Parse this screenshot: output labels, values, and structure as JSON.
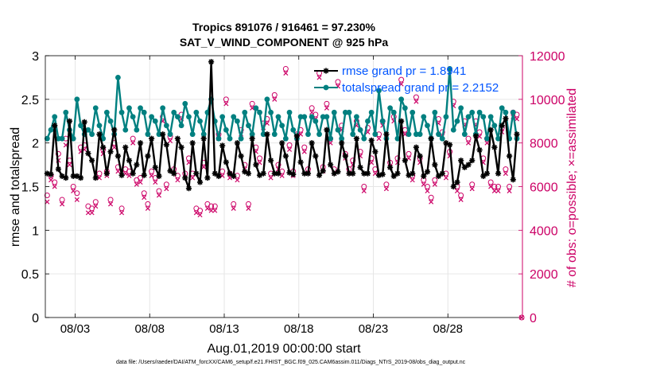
{
  "chart_data": {
    "type": "line",
    "title": "Tropics 891076 / 916461 = 97.230%",
    "subtitle": "SAT_V_WIND_COMPONENT @ 925 hPa",
    "xlabel": "Aug.01,2019 00:00:00 start",
    "ylabel": "rmse and totalspread",
    "ylabel_right": "# of obs: o=possible; ×=assimilated",
    "footnote": "data file: /Users/raeder/DAI/ATM_forcXX/CAM6_setup/f.e21.FHIST_BGC.f09_025.CAM6assim.011/Diags_NTrS_2019-08/obs_diag_output.nc",
    "xlim": [
      1,
      33
    ],
    "ylim": [
      0,
      3
    ],
    "ylim_right": [
      0,
      12000
    ],
    "xticks": [
      3,
      8,
      13,
      18,
      23,
      28
    ],
    "xtick_labels": [
      "08/03",
      "08/08",
      "08/13",
      "08/18",
      "08/23",
      "08/28"
    ],
    "yticks": [
      0,
      0.5,
      1,
      1.5,
      2,
      2.5,
      3
    ],
    "ytick_labels": [
      "0",
      "0.5",
      "1",
      "1.5",
      "2",
      "2.5",
      "3"
    ],
    "yticks_right": [
      0,
      2000,
      4000,
      6000,
      8000,
      10000,
      12000
    ],
    "ytick_labels_right": [
      "0",
      "2000",
      "4000",
      "6000",
      "8000",
      "10000",
      "12000"
    ],
    "grid": true,
    "legend_position": "top-right",
    "colors": {
      "rmse": "#000000",
      "spread": "#008080",
      "obs": "#cc0066",
      "legend_text": "#0055ff"
    },
    "series": [
      {
        "name": "rmse grand pr = 1.8941",
        "axis": "left",
        "marker": "asterisk",
        "t": [
          1.125,
          1.375,
          1.625,
          1.875,
          2.125,
          2.375,
          2.625,
          2.875,
          3.125,
          3.375,
          3.625,
          3.875,
          4.125,
          4.375,
          4.625,
          4.875,
          5.125,
          5.375,
          5.625,
          5.875,
          6.125,
          6.375,
          6.625,
          6.875,
          7.125,
          7.375,
          7.625,
          7.875,
          8.125,
          8.375,
          8.625,
          8.875,
          9.125,
          9.375,
          9.625,
          9.875,
          10.125,
          10.375,
          10.625,
          10.875,
          11.125,
          11.375,
          11.625,
          11.875,
          12.125,
          12.375,
          12.625,
          12.875,
          13.125,
          13.375,
          13.625,
          13.875,
          14.125,
          14.375,
          14.625,
          14.875,
          15.125,
          15.375,
          15.625,
          15.875,
          16.125,
          16.375,
          16.625,
          16.875,
          17.125,
          17.375,
          17.625,
          17.875,
          18.125,
          18.375,
          18.625,
          18.875,
          19.125,
          19.375,
          19.625,
          19.875,
          20.125,
          20.375,
          20.625,
          20.875,
          21.125,
          21.375,
          21.625,
          21.875,
          22.125,
          22.375,
          22.625,
          22.875,
          23.125,
          23.375,
          23.625,
          23.875,
          24.125,
          24.375,
          24.625,
          24.875,
          25.125,
          25.375,
          25.625,
          25.875,
          26.125,
          26.375,
          26.625,
          26.875,
          27.125,
          27.375,
          27.625,
          27.875,
          28.125,
          28.375,
          28.625,
          28.875,
          29.125,
          29.375,
          29.625,
          29.875,
          30.125,
          30.375,
          30.625,
          30.875,
          31.125,
          31.375,
          31.625,
          31.875,
          32.125,
          32.375,
          32.625
        ],
        "values": [
          1.65,
          1.64,
          2.2,
          1.7,
          1.62,
          1.6,
          2.25,
          1.62,
          1.62,
          1.6,
          2.24,
          1.88,
          1.8,
          1.6,
          2.1,
          1.95,
          1.65,
          1.9,
          2.15,
          1.85,
          1.63,
          1.95,
          1.8,
          1.65,
          1.75,
          2.0,
          1.63,
          1.85,
          2.05,
          1.72,
          1.62,
          2.1,
          1.98,
          1.68,
          1.65,
          2.05,
          1.95,
          1.6,
          1.48,
          2.0,
          1.65,
          1.55,
          2.05,
          1.6,
          2.93,
          1.65,
          1.62,
          1.97,
          1.78,
          1.65,
          1.62,
          2.0,
          1.85,
          1.67,
          1.65,
          2.05,
          1.75,
          1.63,
          1.65,
          2.1,
          1.8,
          1.65,
          1.65,
          2.0,
          1.85,
          1.66,
          1.64,
          2.08,
          1.78,
          1.65,
          1.65,
          2.0,
          1.85,
          1.63,
          1.68,
          2.15,
          1.75,
          1.65,
          1.67,
          2.0,
          1.85,
          1.65,
          1.65,
          2.05,
          1.72,
          1.65,
          1.65,
          2.03,
          1.9,
          1.63,
          1.64,
          2.1,
          1.72,
          1.62,
          1.65,
          2.25,
          1.8,
          1.63,
          1.65,
          1.95,
          1.85,
          1.62,
          1.67,
          2.05,
          1.75,
          1.62,
          1.65,
          2.0,
          1.98,
          1.5,
          1.55,
          1.8,
          1.72,
          1.75,
          1.8,
          2.08,
          1.92,
          1.62,
          1.65,
          2.15,
          1.95,
          1.65,
          2.2,
          2.28,
          1.85,
          1.58,
          2.1
        ],
        "min": 1.48,
        "max": 2.93
      },
      {
        "name": "totalspread grand pr = 2.2152",
        "axis": "left",
        "marker": "filled-circle",
        "t": [
          1.125,
          1.375,
          1.625,
          1.875,
          2.125,
          2.375,
          2.625,
          2.875,
          3.125,
          3.375,
          3.625,
          3.875,
          4.125,
          4.375,
          4.625,
          4.875,
          5.125,
          5.375,
          5.625,
          5.875,
          6.125,
          6.375,
          6.625,
          6.875,
          7.125,
          7.375,
          7.625,
          7.875,
          8.125,
          8.375,
          8.625,
          8.875,
          9.125,
          9.375,
          9.625,
          9.875,
          10.125,
          10.375,
          10.625,
          10.875,
          11.125,
          11.375,
          11.625,
          11.875,
          12.125,
          12.375,
          12.625,
          12.875,
          13.125,
          13.375,
          13.625,
          13.875,
          14.125,
          14.375,
          14.625,
          14.875,
          15.125,
          15.375,
          15.625,
          15.875,
          16.125,
          16.375,
          16.625,
          16.875,
          17.125,
          17.375,
          17.625,
          17.875,
          18.125,
          18.375,
          18.625,
          18.875,
          19.125,
          19.375,
          19.625,
          19.875,
          20.125,
          20.375,
          20.625,
          20.875,
          21.125,
          21.375,
          21.625,
          21.875,
          22.125,
          22.375,
          22.625,
          22.875,
          23.125,
          23.375,
          23.625,
          23.875,
          24.125,
          24.375,
          24.625,
          24.875,
          25.125,
          25.375,
          25.625,
          25.875,
          26.125,
          26.375,
          26.625,
          26.875,
          27.125,
          27.375,
          27.625,
          27.875,
          28.125,
          28.375,
          28.625,
          28.875,
          29.125,
          29.375,
          29.625,
          29.875,
          30.125,
          30.375,
          30.625,
          30.875,
          31.125,
          31.375,
          31.625,
          31.875,
          32.125,
          32.375,
          32.625
        ],
        "values": [
          2.05,
          2.15,
          2.3,
          2.05,
          2.05,
          2.35,
          2.15,
          2.05,
          2.5,
          2.2,
          2.1,
          2.15,
          2.1,
          2.4,
          2.2,
          2.05,
          2.35,
          2.25,
          2.1,
          2.75,
          2.35,
          2.15,
          2.4,
          2.3,
          2.15,
          2.4,
          2.35,
          2.1,
          2.3,
          2.25,
          2.1,
          2.4,
          2.2,
          2.1,
          2.35,
          2.3,
          2.2,
          2.45,
          2.3,
          2.1,
          2.35,
          2.25,
          2.1,
          2.35,
          2.5,
          2.25,
          2.05,
          2.3,
          2.15,
          2.05,
          2.3,
          2.25,
          2.05,
          2.35,
          2.2,
          2.1,
          2.4,
          2.35,
          2.1,
          2.5,
          2.35,
          2.1,
          2.3,
          2.2,
          2.05,
          2.35,
          2.15,
          2.05,
          2.3,
          2.3,
          2.1,
          2.3,
          2.25,
          2.1,
          2.3,
          2.3,
          2.05,
          2.35,
          2.15,
          2.05,
          2.35,
          2.35,
          2.1,
          2.3,
          2.15,
          2.05,
          2.25,
          2.35,
          2.1,
          2.6,
          2.25,
          2.05,
          2.4,
          2.35,
          2.05,
          2.5,
          2.4,
          2.1,
          2.35,
          2.1,
          2.1,
          2.3,
          2.2,
          2.05,
          2.35,
          2.1,
          2.05,
          2.3,
          2.85,
          2.15,
          2.25,
          2.4,
          2.1,
          2.3,
          2.35,
          2.1,
          2.35,
          2.3,
          2.05,
          2.3,
          2.2,
          2.05,
          2.4,
          2.35,
          2.05,
          2.35,
          2.05
        ],
        "min": 2.05,
        "max": 2.85
      },
      {
        "name": "obs possible",
        "axis": "right",
        "marker": "open-circle",
        "t": [
          1.125,
          1.375,
          1.625,
          1.875,
          2.125,
          2.375,
          2.625,
          2.875,
          3.125,
          3.375,
          3.625,
          3.875,
          4.125,
          4.375,
          4.625,
          4.875,
          5.125,
          5.375,
          5.625,
          5.875,
          6.125,
          6.375,
          6.625,
          6.875,
          7.125,
          7.375,
          7.625,
          7.875,
          8.125,
          8.375,
          8.625,
          8.875,
          9.125,
          9.375,
          9.625,
          9.875,
          10.125,
          10.375,
          10.625,
          10.875,
          11.125,
          11.375,
          11.625,
          11.875,
          12.125,
          12.375,
          12.625,
          12.875,
          13.125,
          13.375,
          13.625,
          13.875,
          14.125,
          14.375,
          14.625,
          14.875,
          15.125,
          15.375,
          15.625,
          15.875,
          16.125,
          16.375,
          16.625,
          16.875,
          17.125,
          17.375,
          17.625,
          17.875,
          18.125,
          18.375,
          18.625,
          18.875,
          19.125,
          19.375,
          19.625,
          19.875,
          20.125,
          20.375,
          20.625,
          20.875,
          21.125,
          21.375,
          21.625,
          21.875,
          22.125,
          22.375,
          22.625,
          22.875,
          23.125,
          23.375,
          23.625,
          23.875,
          24.125,
          24.375,
          24.625,
          24.875,
          25.125,
          25.375,
          25.625,
          25.875,
          26.125,
          26.375,
          26.625,
          26.875,
          27.125,
          27.375,
          27.625,
          27.875,
          28.125,
          28.375,
          28.625,
          28.875,
          29.125,
          29.375,
          29.625,
          29.875,
          30.125,
          30.375,
          30.625,
          30.875,
          31.125,
          31.375,
          31.625,
          31.875,
          32.125,
          32.375,
          32.625
        ],
        "values": [
          5600,
          6500,
          6200,
          7500,
          5400,
          8200,
          7200,
          6000,
          5700,
          7800,
          7900,
          5100,
          5000,
          5300,
          6600,
          7700,
          6700,
          5400,
          8000,
          6900,
          5000,
          6800,
          6700,
          8200,
          6300,
          6400,
          5700,
          5200,
          6700,
          6400,
          5800,
          9200,
          6100,
          8300,
          6800,
          6500,
          9300,
          6600,
          7300,
          6600,
          5000,
          4900,
          7100,
          5200,
          5100,
          5100,
          8400,
          6700,
          10000,
          6600,
          5200,
          6500,
          8600,
          7000,
          5200,
          9800,
          7800,
          7300,
          8900,
          9100,
          6600,
          10200,
          7000,
          6700,
          11400,
          7900,
          6700,
          8400,
          8600,
          7800,
          6800,
          9600,
          9300,
          11200,
          6900,
          9800,
          8200,
          6800,
          10800,
          8800,
          7500,
          6800,
          7200,
          9000,
          7600,
          6000,
          8700,
          7300,
          6800,
          8400,
          9000,
          6100,
          7100,
          9200,
          7300,
          10900,
          8600,
          7500,
          6500,
          10100,
          7300,
          6300,
          6000,
          5500,
          6300,
          9100,
          8500,
          6600,
          7600,
          9900,
          6000,
          5600,
          9000,
          8200,
          6100,
          9000,
          8500,
          7300,
          8200,
          6200,
          6000,
          6000,
          8700,
          6800,
          6000,
          9400,
          9300
        ],
        "min": 4900,
        "max": 11400
      },
      {
        "name": "obs assimilated",
        "axis": "right",
        "marker": "cross",
        "t": [
          1.125,
          1.375,
          1.625,
          1.875,
          2.125,
          2.375,
          2.625,
          2.875,
          3.125,
          3.375,
          3.625,
          3.875,
          4.125,
          4.375,
          4.625,
          4.875,
          5.125,
          5.375,
          5.625,
          5.875,
          6.125,
          6.375,
          6.625,
          6.875,
          7.125,
          7.375,
          7.625,
          7.875,
          8.125,
          8.375,
          8.625,
          8.875,
          9.125,
          9.375,
          9.625,
          9.875,
          10.125,
          10.375,
          10.625,
          10.875,
          11.125,
          11.375,
          11.625,
          11.875,
          12.125,
          12.375,
          12.625,
          12.875,
          13.125,
          13.375,
          13.625,
          13.875,
          14.125,
          14.375,
          14.625,
          14.875,
          15.125,
          15.375,
          15.625,
          15.875,
          16.125,
          16.375,
          16.625,
          16.875,
          17.125,
          17.375,
          17.625,
          17.875,
          18.125,
          18.375,
          18.625,
          18.875,
          19.125,
          19.375,
          19.625,
          19.875,
          20.125,
          20.375,
          20.625,
          20.875,
          21.125,
          21.375,
          21.625,
          21.875,
          22.125,
          22.375,
          22.625,
          22.875,
          23.125,
          23.375,
          23.625,
          23.875,
          24.125,
          24.375,
          24.625,
          24.875,
          25.125,
          25.375,
          25.625,
          25.875,
          26.125,
          26.375,
          26.625,
          26.875,
          27.125,
          27.375,
          27.625,
          27.875,
          28.125,
          28.375,
          28.625,
          28.875,
          29.125,
          29.375,
          29.625,
          29.875,
          30.125,
          30.375,
          30.625,
          30.875,
          31.125,
          31.375,
          31.625,
          31.875,
          32.125,
          32.375,
          32.625
        ],
        "values": [
          5300,
          6300,
          6000,
          7200,
          5200,
          7900,
          7000,
          5800,
          5400,
          7600,
          7700,
          4800,
          4800,
          5100,
          6400,
          7500,
          6500,
          5200,
          7800,
          6700,
          4800,
          6600,
          6500,
          8000,
          6100,
          6200,
          5500,
          5000,
          6500,
          6200,
          5600,
          9000,
          5900,
          8100,
          6600,
          6300,
          9100,
          6400,
          7100,
          6400,
          4800,
          4700,
          6900,
          5000,
          4900,
          4900,
          8200,
          6500,
          9800,
          6400,
          5000,
          6300,
          8400,
          6800,
          5000,
          9600,
          7600,
          7100,
          8700,
          8900,
          6400,
          10000,
          6800,
          6500,
          11200,
          7700,
          6500,
          8200,
          8400,
          7600,
          6600,
          9400,
          9100,
          11000,
          6700,
          9600,
          8000,
          6600,
          10600,
          8600,
          7300,
          6600,
          7000,
          8800,
          7400,
          5800,
          8500,
          7100,
          6600,
          8200,
          8800,
          5900,
          6900,
          9000,
          7100,
          10700,
          8400,
          7300,
          6300,
          9900,
          7100,
          6100,
          5800,
          5300,
          6100,
          8900,
          8300,
          6400,
          7400,
          9700,
          5800,
          5400,
          8800,
          8000,
          5900,
          8800,
          8300,
          7100,
          8000,
          6000,
          5800,
          5800,
          8500,
          6600,
          5800,
          9200,
          9100
        ],
        "min": 4700,
        "max": 11200
      }
    ],
    "extra_points": [
      {
        "series": "obs possible",
        "t": 32.95,
        "value": 0
      },
      {
        "series": "obs assimilated",
        "t": 32.95,
        "value": 0
      }
    ]
  }
}
